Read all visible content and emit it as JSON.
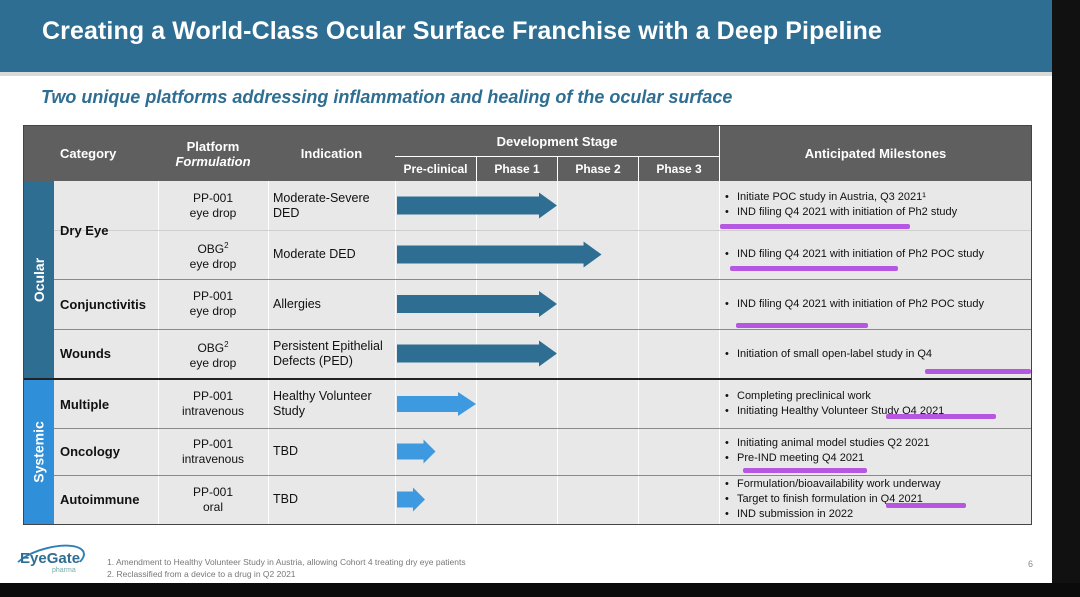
{
  "title": "Creating a World-Class Ocular Surface Franchise with a Deep Pipeline",
  "subtitle": "Two unique platforms addressing inflammation and healing of the ocular surface",
  "headers": {
    "category": "Category",
    "platform": "Platform",
    "formulation": "Formulation",
    "indication": "Indication",
    "development_stage": "Development Stage",
    "preclinical": "Pre-clinical",
    "phase1": "Phase 1",
    "phase2": "Phase 2",
    "phase3": "Phase 3",
    "milestones": "Anticipated Milestones"
  },
  "groups": {
    "ocular": "Ocular",
    "systemic": "Systemic"
  },
  "rows": [
    {
      "category": "Dry Eye",
      "platform": "PP-001",
      "platform_sup": "",
      "formulation": "eye drop",
      "indication": "Moderate-Severe DED",
      "stage": 2.0,
      "milestones": [
        "Initiate POC study in Austria, Q3 2021¹",
        "IND filing Q4 2021 with initiation of Ph2 study"
      ]
    },
    {
      "category": "",
      "platform": "OBG",
      "platform_sup": "2",
      "formulation": "eye drop",
      "indication": "Moderate DED",
      "stage": 2.55,
      "milestones": [
        "IND filing Q4 2021 with initiation of Ph2 POC study"
      ]
    },
    {
      "category": "Conjunctivitis",
      "platform": "PP-001",
      "platform_sup": "",
      "formulation": "eye drop",
      "indication": "Allergies",
      "stage": 2.0,
      "milestones": [
        "IND filing Q4 2021 with initiation of Ph2 POC study"
      ]
    },
    {
      "category": "Wounds",
      "platform": "OBG",
      "platform_sup": "2",
      "formulation": "eye drop",
      "indication": "Persistent Epithelial Defects (PED)",
      "stage": 2.0,
      "milestones": [
        "Initiation of small open-label study in Q4"
      ]
    },
    {
      "category": "Multiple",
      "platform": "PP-001",
      "platform_sup": "",
      "formulation": "intravenous",
      "indication": "Healthy Volunteer Study",
      "stage": 1.0,
      "milestones": [
        "Completing preclinical work",
        "Initiating Healthy Volunteer Study Q4 2021"
      ]
    },
    {
      "category": "Oncology",
      "platform": "PP-001",
      "platform_sup": "",
      "formulation": "intravenous",
      "indication": "TBD",
      "stage": 0.5,
      "milestones": [
        "Initiating animal model studies Q2 2021",
        "Pre-IND meeting Q4 2021"
      ]
    },
    {
      "category": "Autoimmune",
      "platform": "PP-001",
      "platform_sup": "",
      "formulation": "oral",
      "indication": "TBD",
      "stage": 0.37,
      "milestones": [
        "Formulation/bioavailability work underway",
        "Target to finish formulation in Q4 2021",
        "IND submission in 2022"
      ]
    }
  ],
  "colors": {
    "dark_blue": "#2e6e93",
    "light_blue": "#3d9ae0",
    "header_grey": "#5f5f5f",
    "highlight": "#b557e0"
  },
  "footer": {
    "logo_name": "EyeGate",
    "logo_sub": "pharma",
    "footnote1": "1. Amendment to Healthy Volunteer Study in Austria, allowing Cohort 4 treating dry eye patients",
    "footnote2": "2. Reclassified from a device to a drug in Q2 2021",
    "page_number": "6"
  }
}
